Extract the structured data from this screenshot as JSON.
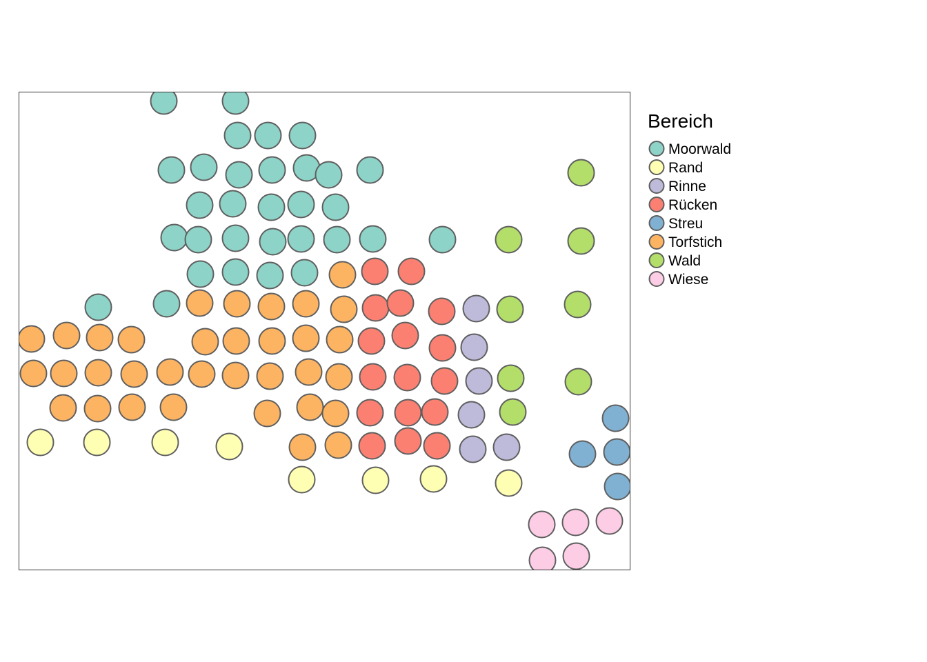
{
  "chart_data": {
    "type": "scatter",
    "title": "",
    "xlabel": "",
    "ylabel": "",
    "xlim": [
      0,
      886
    ],
    "ylim": [
      0,
      693
    ],
    "grid": false,
    "axes_visible": false,
    "legend": {
      "title": "Bereich",
      "position": "right",
      "entries": [
        {
          "name": "Moorwald",
          "color": "#8DD3C7"
        },
        {
          "name": "Rand",
          "color": "#FFFFB3"
        },
        {
          "name": "Rinne",
          "color": "#BEBADA"
        },
        {
          "name": "Rücken",
          "color": "#FB8072"
        },
        {
          "name": "Streu",
          "color": "#80B1D3"
        },
        {
          "name": "Torfstich",
          "color": "#FDB462"
        },
        {
          "name": "Wald",
          "color": "#B3DE69"
        },
        {
          "name": "Wiese",
          "color": "#FCCDE5"
        }
      ]
    },
    "series": [
      {
        "name": "Moorwald",
        "points": [
          [
            210,
            680
          ],
          [
            314,
            680
          ],
          [
            317,
            630
          ],
          [
            361,
            630
          ],
          [
            411,
            630
          ],
          [
            221,
            580
          ],
          [
            268,
            584
          ],
          [
            319,
            573
          ],
          [
            367,
            580
          ],
          [
            417,
            583
          ],
          [
            449,
            573
          ],
          [
            509,
            580
          ],
          [
            262,
            529
          ],
          [
            310,
            531
          ],
          [
            366,
            526
          ],
          [
            409,
            530
          ],
          [
            459,
            526
          ],
          [
            225,
            482
          ],
          [
            260,
            479
          ],
          [
            314,
            481
          ],
          [
            368,
            476
          ],
          [
            409,
            480
          ],
          [
            461,
            479
          ],
          [
            513,
            480
          ],
          [
            614,
            479
          ],
          [
            263,
            429
          ],
          [
            314,
            432
          ],
          [
            364,
            427
          ],
          [
            414,
            431
          ],
          [
            115,
            381
          ],
          [
            214,
            386
          ]
        ]
      },
      {
        "name": "Rand",
        "points": [
          [
            31,
            185
          ],
          [
            113,
            185
          ],
          [
            212,
            185
          ],
          [
            305,
            179
          ],
          [
            410,
            131
          ],
          [
            517,
            130
          ],
          [
            601,
            132
          ],
          [
            710,
            126
          ]
        ]
      },
      {
        "name": "Rinne",
        "points": [
          [
            663,
            379
          ],
          [
            660,
            323
          ],
          [
            667,
            274
          ],
          [
            656,
            225
          ],
          [
            658,
            175
          ],
          [
            707,
            178
          ]
        ]
      },
      {
        "name": "Rücken",
        "points": [
          [
            516,
            433
          ],
          [
            569,
            433
          ],
          [
            517,
            380
          ],
          [
            553,
            387
          ],
          [
            613,
            375
          ],
          [
            511,
            332
          ],
          [
            560,
            340
          ],
          [
            614,
            322
          ],
          [
            513,
            280
          ],
          [
            563,
            279
          ],
          [
            617,
            274
          ],
          [
            509,
            228
          ],
          [
            564,
            228
          ],
          [
            603,
            229
          ],
          [
            512,
            180
          ],
          [
            564,
            187
          ],
          [
            606,
            180
          ]
        ]
      },
      {
        "name": "Streu",
        "points": [
          [
            865,
            220
          ],
          [
            817,
            168
          ],
          [
            867,
            171
          ],
          [
            868,
            121
          ]
        ]
      },
      {
        "name": "Torfstich",
        "points": [
          [
            469,
            428
          ],
          [
            262,
            387
          ],
          [
            316,
            386
          ],
          [
            366,
            382
          ],
          [
            416,
            386
          ],
          [
            471,
            378
          ],
          [
            18,
            335
          ],
          [
            69,
            340
          ],
          [
            117,
            337
          ],
          [
            163,
            334
          ],
          [
            270,
            331
          ],
          [
            315,
            332
          ],
          [
            367,
            332
          ],
          [
            416,
            336
          ],
          [
            465,
            334
          ],
          [
            21,
            285
          ],
          [
            65,
            285
          ],
          [
            115,
            286
          ],
          [
            167,
            284
          ],
          [
            219,
            287
          ],
          [
            265,
            284
          ],
          [
            314,
            282
          ],
          [
            364,
            281
          ],
          [
            420,
            287
          ],
          [
            464,
            280
          ],
          [
            64,
            235
          ],
          [
            114,
            234
          ],
          [
            164,
            236
          ],
          [
            224,
            236
          ],
          [
            360,
            227
          ],
          [
            422,
            236
          ],
          [
            459,
            227
          ],
          [
            411,
            178
          ],
          [
            463,
            181
          ]
        ]
      },
      {
        "name": "Wald",
        "points": [
          [
            815,
            576
          ],
          [
            710,
            479
          ],
          [
            815,
            477
          ],
          [
            712,
            378
          ],
          [
            810,
            385
          ],
          [
            713,
            278
          ],
          [
            811,
            273
          ],
          [
            716,
            229
          ]
        ]
      },
      {
        "name": "Wiese",
        "points": [
          [
            758,
            66
          ],
          [
            807,
            69
          ],
          [
            856,
            71
          ],
          [
            759,
            14
          ],
          [
            808,
            20
          ]
        ]
      }
    ]
  }
}
